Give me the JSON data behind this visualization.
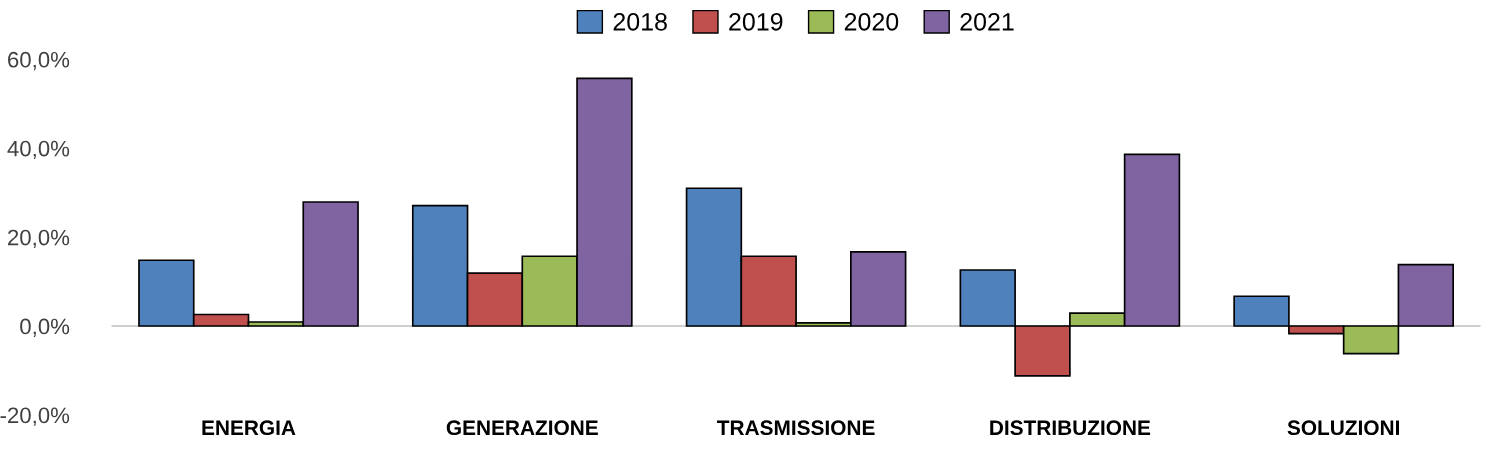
{
  "chart_data": {
    "type": "bar",
    "categories": [
      "ENERGIA",
      "GENERAZIONE",
      "TRASMISSIONE",
      "DISTRIBUZIONE",
      "SOLUZIONI"
    ],
    "series": [
      {
        "name": "2018",
        "color": "#4f81bd",
        "values": [
          14.8,
          27.1,
          31.0,
          12.6,
          6.7
        ]
      },
      {
        "name": "2019",
        "color": "#c0504d",
        "values": [
          2.6,
          11.9,
          15.7,
          -11.2,
          -1.7
        ]
      },
      {
        "name": "2020",
        "color": "#9bbb59",
        "values": [
          0.9,
          15.7,
          0.7,
          2.9,
          -6.2
        ]
      },
      {
        "name": "2021",
        "color": "#8064a2",
        "values": [
          27.9,
          55.7,
          16.7,
          38.6,
          13.8
        ]
      }
    ],
    "ylim": [
      -20,
      60
    ],
    "yticks": [
      {
        "value": -20,
        "label": "-20,0%"
      },
      {
        "value": 0,
        "label": "0,0%"
      },
      {
        "value": 20,
        "label": "20,0%"
      },
      {
        "value": 40,
        "label": "40,0%"
      },
      {
        "value": 60,
        "label": "60,0%"
      }
    ],
    "grid": false,
    "ref_lines": [
      {
        "axis": "y",
        "value": 0,
        "color": "#bfbfbf"
      }
    ],
    "legend": "top"
  }
}
